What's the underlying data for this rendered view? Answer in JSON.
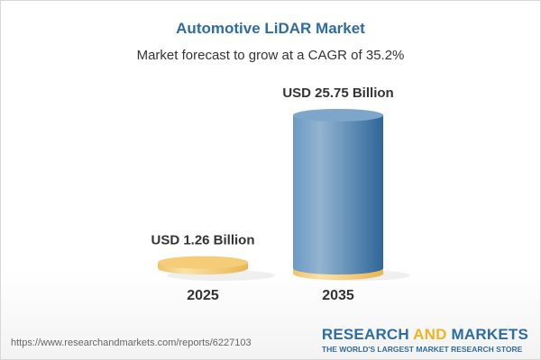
{
  "header": {
    "title": "Automotive LiDAR Market",
    "subtitle": "Market forecast to grow at a CAGR of 35.2%"
  },
  "chart_data": {
    "type": "bar",
    "style": "3d-cylinder",
    "categories": [
      "2025",
      "2035"
    ],
    "values": [
      1.26,
      25.75
    ],
    "data_labels": [
      "USD 1.26 Billion",
      "USD 25.75 Billion"
    ],
    "unit": "USD Billion",
    "colors": {
      "bar_2025": "#f5cd78",
      "bar_2035": "#5b8fbc",
      "base": "#f5cd78"
    },
    "grid": false
  },
  "footer": {
    "url": "https://www.researchandmarkets.com/reports/6227103",
    "logo": {
      "part1": "RESEARCH ",
      "part2": "AND",
      "part3": " MARKETS",
      "tagline": "THE WORLD'S LARGEST MARKET RESEARCH STORE"
    }
  }
}
